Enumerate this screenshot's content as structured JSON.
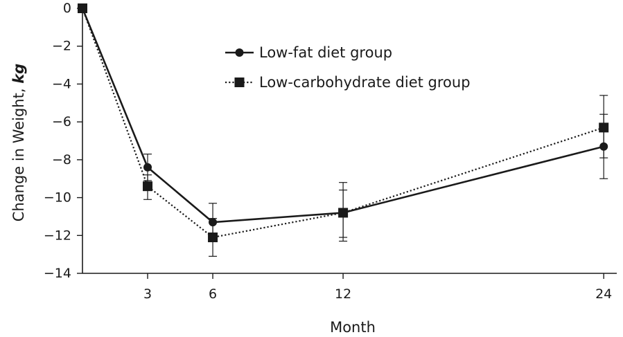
{
  "chart_data": {
    "type": "line",
    "xlabel": "Month",
    "ylabel_main": "Change in Weight, ",
    "ylabel_unit": "kg",
    "x_ticks": [
      "3",
      "6",
      "12",
      "24"
    ],
    "x_tick_values": [
      3,
      6,
      12,
      24
    ],
    "y_ticks": [
      "0",
      "−2",
      "−4",
      "−6",
      "−8",
      "−10",
      "−12",
      "−14"
    ],
    "y_tick_values": [
      0,
      -2,
      -4,
      -6,
      -8,
      -10,
      -12,
      -14
    ],
    "xlim": [
      0,
      24.6
    ],
    "ylim": [
      -14,
      0
    ],
    "grid": false,
    "legend_position": "top-center",
    "series": [
      {
        "name": "Low-fat diet group",
        "marker": "circle",
        "line_style": "solid",
        "color": "#1a1a1a",
        "x": [
          0,
          3,
          6,
          12,
          24
        ],
        "values": [
          0,
          -8.4,
          -11.3,
          -10.8,
          -7.3
        ],
        "error_low": [
          0,
          -9.1,
          -12.3,
          -12.3,
          -9.0
        ],
        "error_high": [
          0,
          -7.7,
          -10.3,
          -9.2,
          -5.6
        ]
      },
      {
        "name": "Low-carbohydrate diet group",
        "marker": "square",
        "line_style": "dotted",
        "color": "#1a1a1a",
        "x": [
          0,
          3,
          6,
          12,
          24
        ],
        "values": [
          0,
          -9.4,
          -12.1,
          -10.8,
          -6.3
        ],
        "error_low": [
          0,
          -10.1,
          -13.1,
          -12.1,
          -7.9
        ],
        "error_high": [
          0,
          -8.8,
          -11.1,
          -9.6,
          -4.6
        ]
      }
    ]
  }
}
